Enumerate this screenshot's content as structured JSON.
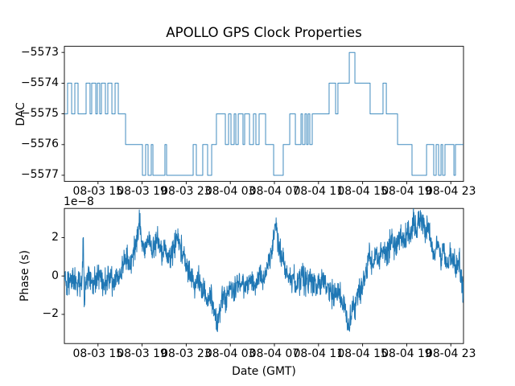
{
  "figure": {
    "title": "APOLLO GPS Clock Properties",
    "background_color": "#ffffff",
    "line_color": "#1f77b4",
    "spine_color": "#000000"
  },
  "chart_data": [
    {
      "type": "line",
      "drawstyle": "steps-post",
      "name": "dac-vs-time",
      "ylabel": "DAC",
      "grid": false,
      "legend": false,
      "xlim": [
        -0.05,
        36.15
      ],
      "ylim": [
        -5577.2,
        -5572.8
      ],
      "yticks": [
        -5573,
        -5574,
        -5575,
        -5576,
        -5577
      ],
      "ytick_labels": [
        "−5573",
        "−5574",
        "−5575",
        "−5576",
        "−5577"
      ],
      "xticks": [
        3,
        7,
        11,
        15,
        19,
        23,
        27,
        31,
        35
      ],
      "xtick_labels": [
        "08-03 15",
        "08-03 19",
        "08-03 23",
        "08-04 03",
        "08-04 07",
        "08-04 11",
        "08-04 15",
        "08-04 19",
        "08-04 23"
      ],
      "x_note": "x in hours; tick spacing = 4 h of GMT date-time",
      "steps": [
        [
          -0.05,
          -5575
        ],
        [
          0.24,
          -5574
        ],
        [
          0.61,
          -5575
        ],
        [
          0.9,
          -5574
        ],
        [
          1.19,
          -5575
        ],
        [
          1.92,
          -5574
        ],
        [
          2.28,
          -5575
        ],
        [
          2.43,
          -5574
        ],
        [
          2.8,
          -5575
        ],
        [
          2.94,
          -5574
        ],
        [
          3.16,
          -5575
        ],
        [
          3.31,
          -5574
        ],
        [
          3.67,
          -5575
        ],
        [
          3.89,
          -5574
        ],
        [
          4.26,
          -5575
        ],
        [
          4.55,
          -5574
        ],
        [
          4.84,
          -5575
        ],
        [
          5.5,
          -5576
        ],
        [
          7.03,
          -5577
        ],
        [
          7.32,
          -5576
        ],
        [
          7.54,
          -5577
        ],
        [
          7.83,
          -5576
        ],
        [
          7.98,
          -5577
        ],
        [
          9.07,
          -5576
        ],
        [
          9.22,
          -5577
        ],
        [
          11.63,
          -5576
        ],
        [
          11.92,
          -5577
        ],
        [
          12.5,
          -5576
        ],
        [
          12.94,
          -5577
        ],
        [
          13.31,
          -5576
        ],
        [
          13.74,
          -5575
        ],
        [
          14.55,
          -5576
        ],
        [
          14.84,
          -5575
        ],
        [
          15.06,
          -5576
        ],
        [
          15.35,
          -5575
        ],
        [
          15.5,
          -5576
        ],
        [
          15.72,
          -5575
        ],
        [
          16.15,
          -5576
        ],
        [
          16.3,
          -5575
        ],
        [
          16.74,
          -5576
        ],
        [
          17.1,
          -5575
        ],
        [
          17.32,
          -5576
        ],
        [
          17.61,
          -5575
        ],
        [
          18.2,
          -5576
        ],
        [
          18.93,
          -5577
        ],
        [
          19.8,
          -5576
        ],
        [
          20.39,
          -5575
        ],
        [
          20.9,
          -5576
        ],
        [
          21.41,
          -5575
        ],
        [
          21.55,
          -5576
        ],
        [
          21.77,
          -5575
        ],
        [
          21.92,
          -5576
        ],
        [
          22.06,
          -5575
        ],
        [
          22.21,
          -5576
        ],
        [
          22.43,
          -5575
        ],
        [
          23.96,
          -5574
        ],
        [
          24.55,
          -5575
        ],
        [
          24.76,
          -5574
        ],
        [
          25.79,
          -5573
        ],
        [
          26.3,
          -5574
        ],
        [
          27.68,
          -5575
        ],
        [
          28.85,
          -5574
        ],
        [
          29.15,
          -5575
        ],
        [
          30.17,
          -5576
        ],
        [
          31.48,
          -5577
        ],
        [
          32.8,
          -5576
        ],
        [
          33.45,
          -5577
        ],
        [
          33.67,
          -5576
        ],
        [
          33.89,
          -5577
        ],
        [
          34.11,
          -5576
        ],
        [
          34.26,
          -5577
        ],
        [
          34.47,
          -5576
        ],
        [
          35.28,
          -5577
        ],
        [
          35.42,
          -5576
        ],
        [
          36.15,
          -5576
        ]
      ]
    },
    {
      "type": "line",
      "name": "phase-vs-time",
      "ylabel": "Phase (s)",
      "xlabel": "Date (GMT)",
      "offset_label": "1e−8",
      "scale_factor": 1e-08,
      "grid": false,
      "legend": false,
      "xlim": [
        -0.05,
        36.15
      ],
      "ylim": [
        -3.52,
        3.52
      ],
      "yticks": [
        -2,
        0,
        2
      ],
      "ytick_labels": [
        "−2",
        "0",
        "2"
      ],
      "xticks": [
        3,
        7,
        11,
        15,
        19,
        23,
        27,
        31,
        35
      ],
      "xtick_labels": [
        "08-03 15",
        "08-03 19",
        "08-03 23",
        "08-04 03",
        "08-04 07",
        "08-04 11",
        "08-04 15",
        "08-04 19",
        "08-04 23"
      ],
      "y_units_note": "y values in units of 1e-8 s",
      "mean_keypoints": [
        [
          -0.05,
          -0.2
        ],
        [
          0.2,
          -0.45
        ],
        [
          0.67,
          -0.1
        ],
        [
          1.14,
          -0.5
        ],
        [
          1.57,
          -0.25
        ],
        [
          1.66,
          2.6
        ],
        [
          1.75,
          -1.5
        ],
        [
          1.9,
          -0.3
        ],
        [
          2.27,
          -0.1
        ],
        [
          2.55,
          -0.45
        ],
        [
          3.03,
          0
        ],
        [
          3.5,
          -0.5
        ],
        [
          3.97,
          -0.1
        ],
        [
          4.44,
          -0.35
        ],
        [
          4.81,
          0.1
        ],
        [
          5.19,
          0.4
        ],
        [
          5.57,
          1
        ],
        [
          5.94,
          0.6
        ],
        [
          6.32,
          1.4
        ],
        [
          6.65,
          2.2
        ],
        [
          6.79,
          2.9
        ],
        [
          6.98,
          1.8
        ],
        [
          7.26,
          1.2
        ],
        [
          7.64,
          1.9
        ],
        [
          8.02,
          1.4
        ],
        [
          8.39,
          2
        ],
        [
          8.77,
          1.1
        ],
        [
          9.15,
          1.6
        ],
        [
          9.52,
          0.8
        ],
        [
          9.9,
          1.5
        ],
        [
          10.28,
          1.9
        ],
        [
          10.65,
          1.2
        ],
        [
          11.03,
          0.6
        ],
        [
          11.41,
          0.1
        ],
        [
          11.78,
          -0.4
        ],
        [
          12.16,
          -0.2
        ],
        [
          12.53,
          -0.7
        ],
        [
          12.91,
          -1.2
        ],
        [
          13.19,
          -0.8
        ],
        [
          13.48,
          -1.6
        ],
        [
          13.85,
          -2.7
        ],
        [
          14.04,
          -1.8
        ],
        [
          14.32,
          -1
        ],
        [
          14.61,
          -1.3
        ],
        [
          14.98,
          -0.5
        ],
        [
          15.36,
          -0.8
        ],
        [
          15.74,
          -0.3
        ],
        [
          16.21,
          -0.6
        ],
        [
          16.68,
          -0.2
        ],
        [
          17.15,
          -0.5
        ],
        [
          17.62,
          -0.1
        ],
        [
          18,
          -0.3
        ],
        [
          18.37,
          0.5
        ],
        [
          18.66,
          1.2
        ],
        [
          18.94,
          2
        ],
        [
          19.13,
          2.7
        ],
        [
          19.32,
          1.8
        ],
        [
          19.6,
          1.1
        ],
        [
          19.97,
          0.3
        ],
        [
          20.35,
          -0.3
        ],
        [
          20.73,
          -0.1
        ],
        [
          21.1,
          -0.5
        ],
        [
          21.48,
          0
        ],
        [
          21.86,
          -0.4
        ],
        [
          22.33,
          -0.2
        ],
        [
          22.8,
          -0.6
        ],
        [
          23.27,
          -0.2
        ],
        [
          23.74,
          -0.5
        ],
        [
          24.02,
          -0.8
        ],
        [
          24.4,
          -1.1
        ],
        [
          24.78,
          -0.7
        ],
        [
          25.15,
          -1.3
        ],
        [
          25.53,
          -2
        ],
        [
          25.67,
          -2.8
        ],
        [
          25.91,
          -2.2
        ],
        [
          26.09,
          -1.5
        ],
        [
          26.38,
          -1.9
        ],
        [
          26.66,
          -1
        ],
        [
          27.04,
          -0.4
        ],
        [
          27.32,
          0.3
        ],
        [
          27.6,
          1
        ],
        [
          27.88,
          0.6
        ],
        [
          28.17,
          1.3
        ],
        [
          28.45,
          0.8
        ],
        [
          28.83,
          1.5
        ],
        [
          29.2,
          1.1
        ],
        [
          29.58,
          1.8
        ],
        [
          29.96,
          1.4
        ],
        [
          30.33,
          2.1
        ],
        [
          30.71,
          1.7
        ],
        [
          31.09,
          2.4
        ],
        [
          31.37,
          1.9
        ],
        [
          31.65,
          3.1
        ],
        [
          31.84,
          2.3
        ],
        [
          32.12,
          2.8
        ],
        [
          32.4,
          3.1
        ],
        [
          32.69,
          2.2
        ],
        [
          32.97,
          2.6
        ],
        [
          33.25,
          1.7
        ],
        [
          33.53,
          1.1
        ],
        [
          33.82,
          1.6
        ],
        [
          34.1,
          0.9
        ],
        [
          34.38,
          1.3
        ],
        [
          34.66,
          0.7
        ],
        [
          34.95,
          1.2
        ],
        [
          35.23,
          0.8
        ],
        [
          35.51,
          0.3
        ],
        [
          35.79,
          0.9
        ],
        [
          35.98,
          -0.2
        ],
        [
          36.15,
          -1.1
        ]
      ],
      "noise": {
        "distribution": "triangular",
        "amplitude": 0.85,
        "seed": 20210803,
        "samples_per_unit": 44
      }
    }
  ]
}
